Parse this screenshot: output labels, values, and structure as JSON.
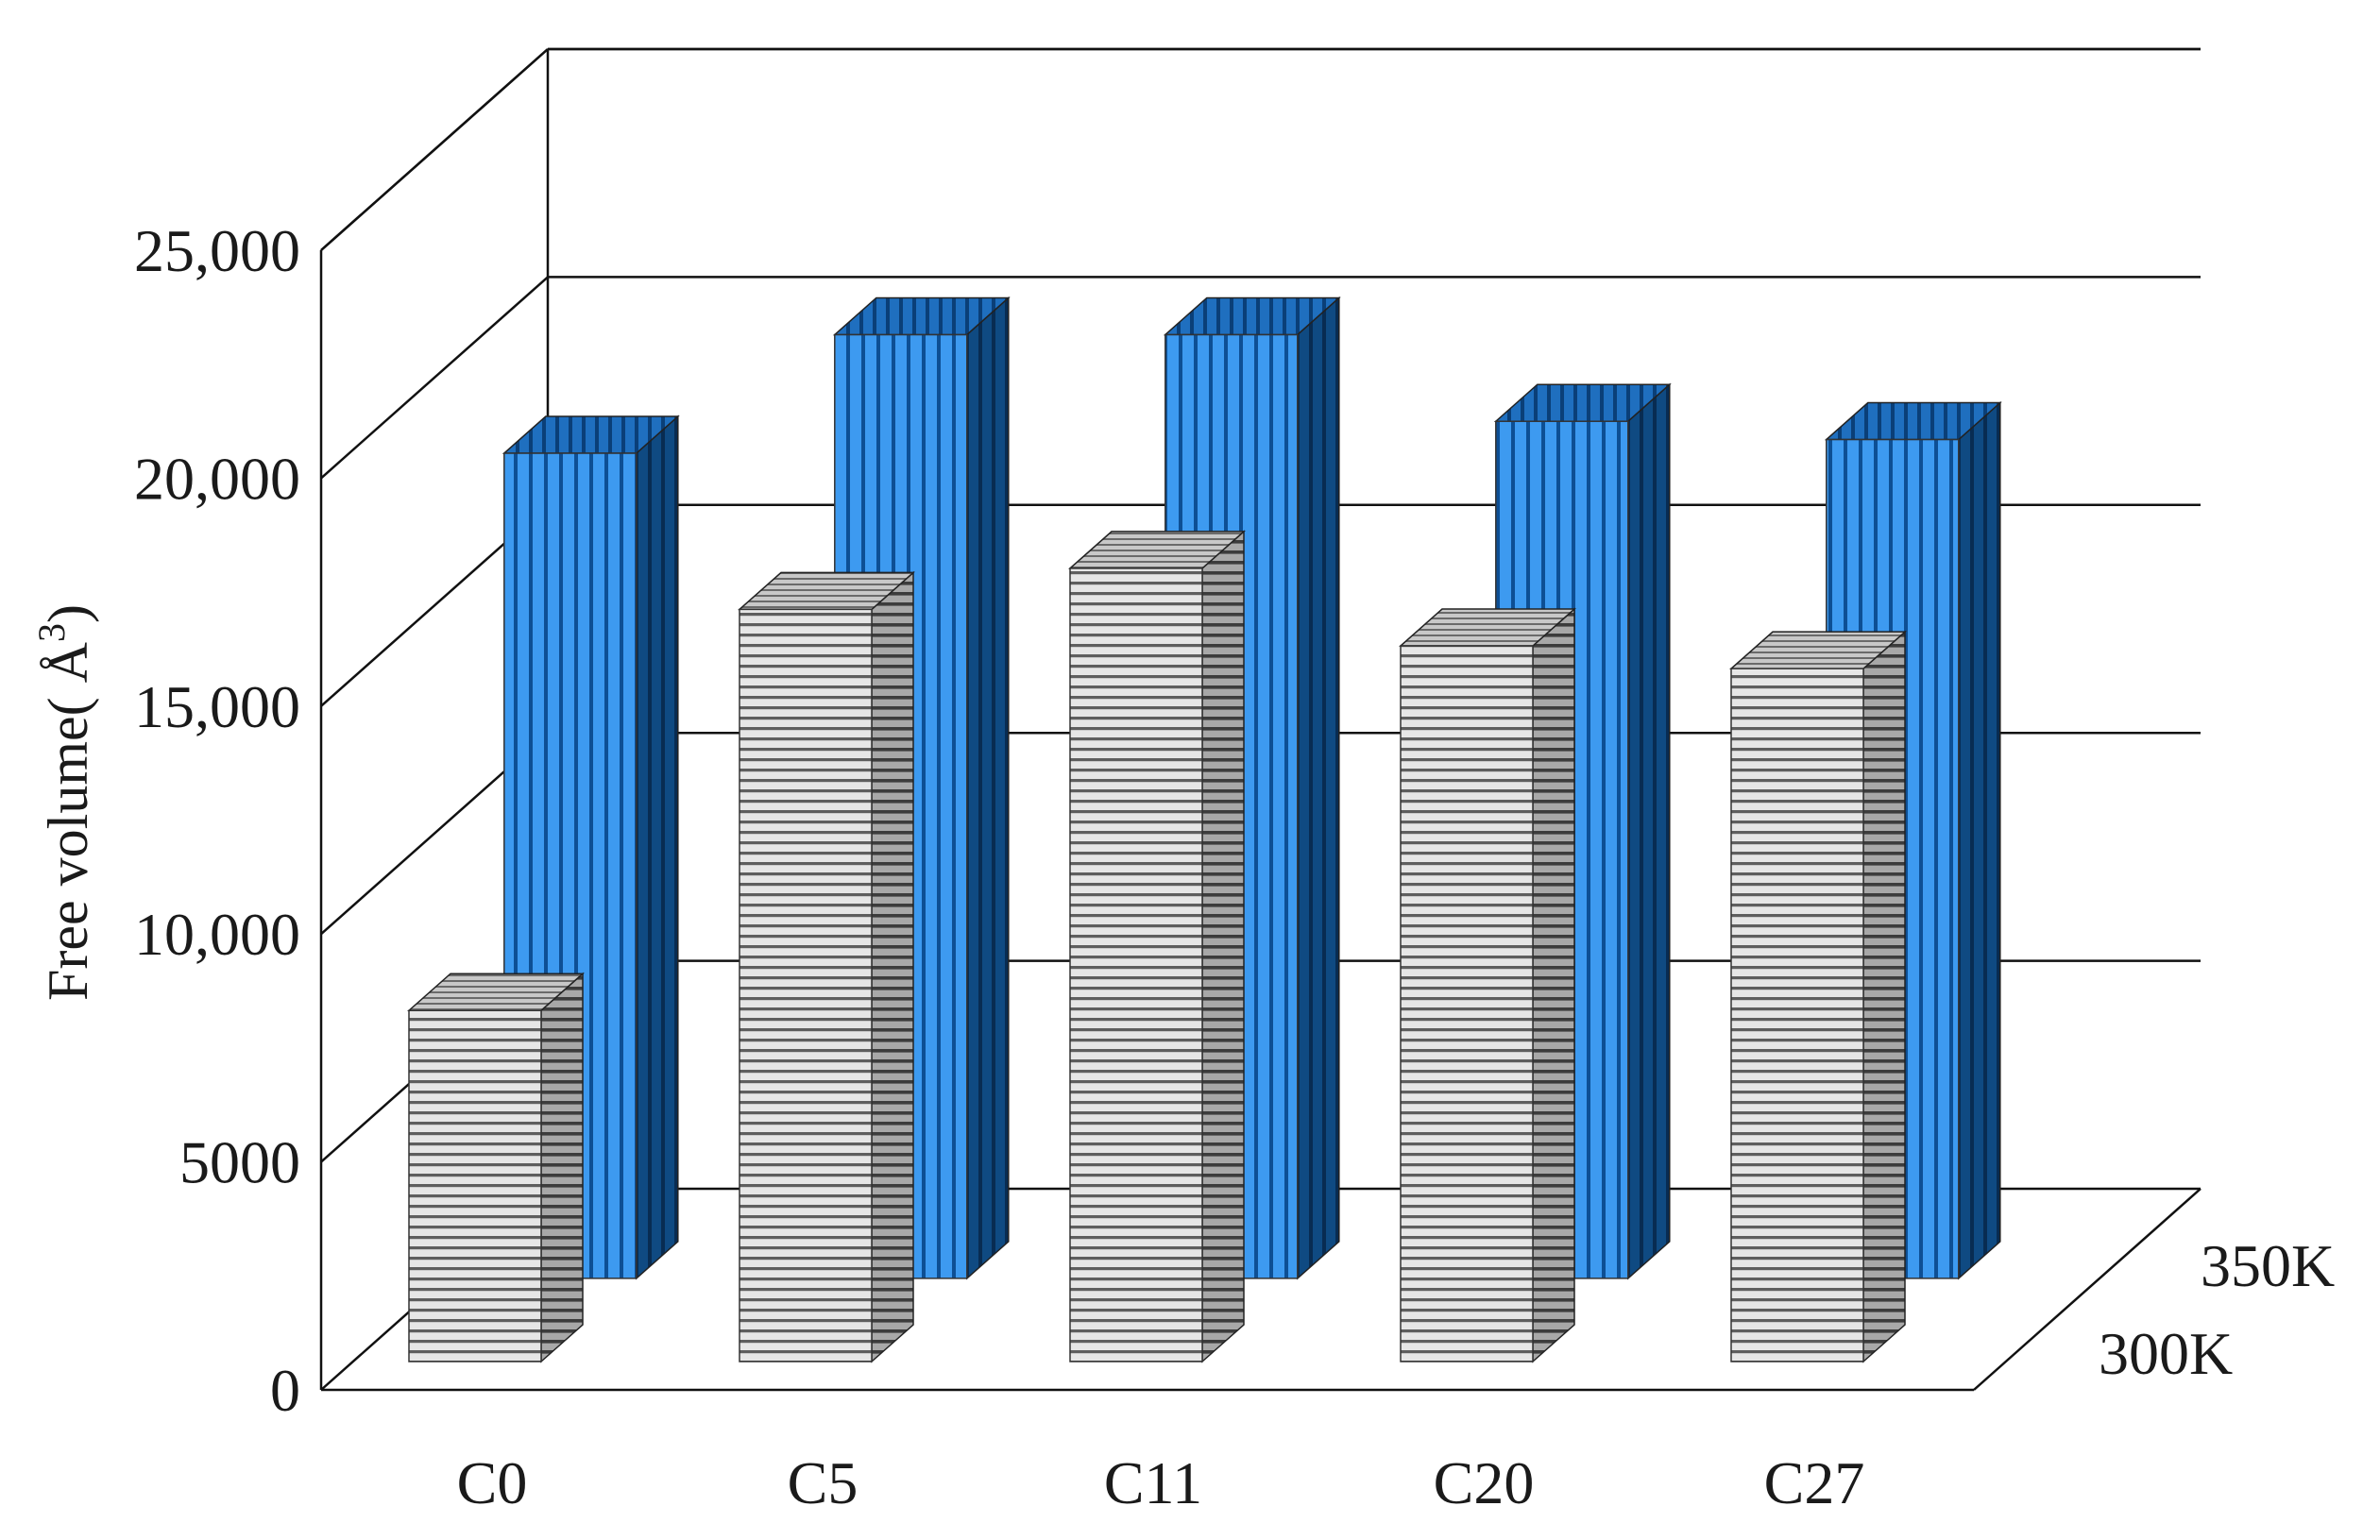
{
  "chart_data": {
    "type": "bar",
    "style": "3d-clustered-bar",
    "title": "",
    "xlabel": "",
    "ylabel": "Free volume( Å³)",
    "ylabel_main": "Free volume( Å",
    "ylabel_sup": "3",
    "ylabel_close": ")",
    "ylim": [
      0,
      25000
    ],
    "yticks": [
      0,
      5000,
      10000,
      15000,
      20000,
      25000
    ],
    "ytick_labels": [
      "0",
      "5000",
      "10,000",
      "15,000",
      "20,000",
      "25,000"
    ],
    "categories": [
      "C0",
      "C5",
      "C11",
      "C20",
      "C27"
    ],
    "grid": true,
    "depth_labels": [
      "300K",
      "350K"
    ],
    "series": [
      {
        "name": "300K",
        "values": [
          7700,
          16500,
          17400,
          15700,
          15200
        ],
        "color": "#c9c9c9",
        "pattern": "horizontal-stripes"
      },
      {
        "name": "350K",
        "values": [
          18100,
          20700,
          20700,
          18800,
          18400
        ],
        "color": "#2f8fe0",
        "pattern": "vertical-stripes"
      }
    ]
  }
}
